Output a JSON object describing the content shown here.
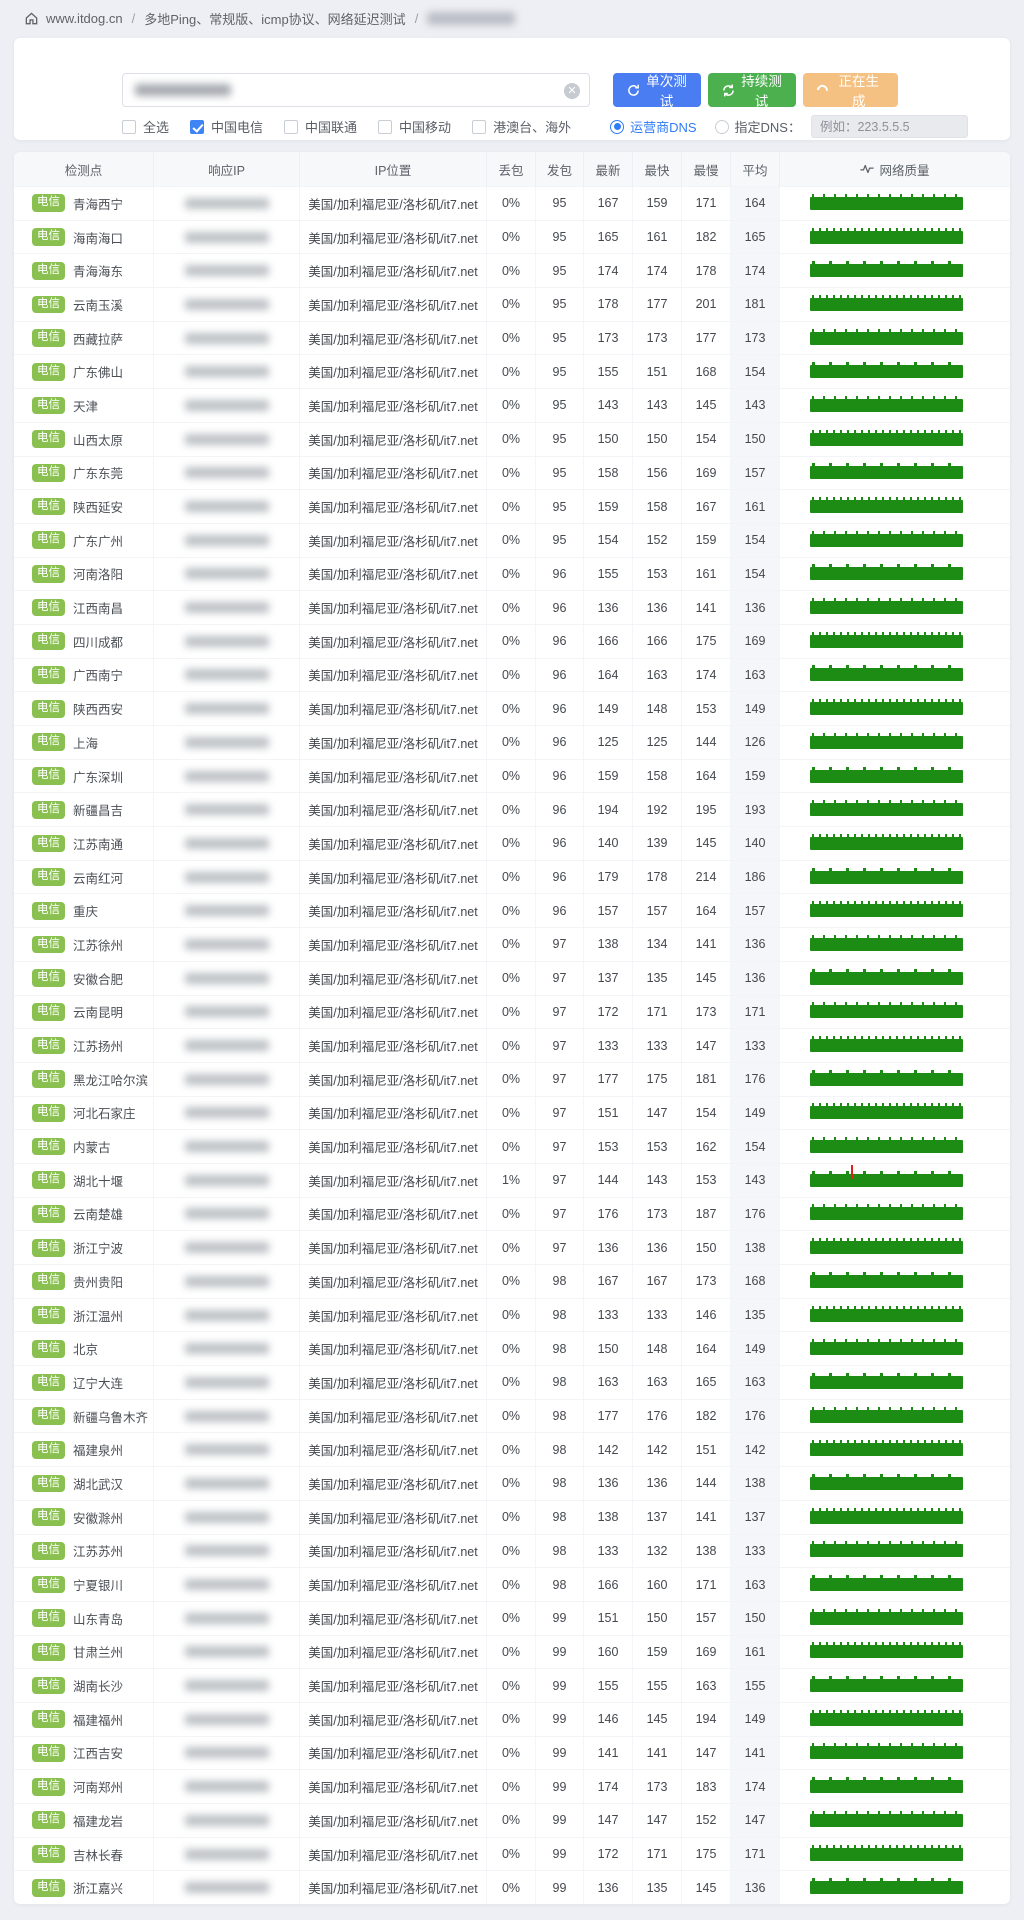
{
  "breadcrumb": {
    "home": "www.itdog.cn",
    "path": "多地Ping、常规版、icmp协议、网络延迟测试",
    "last_segment_redacted": true
  },
  "toolbar": {
    "single_test": "单次测试",
    "continuous_test": "持续测试",
    "generating": "正在生成"
  },
  "filters": {
    "checkboxes": [
      {
        "label": "全选",
        "checked": false
      },
      {
        "label": "中国电信",
        "checked": true
      },
      {
        "label": "中国联通",
        "checked": false
      },
      {
        "label": "中国移动",
        "checked": false
      },
      {
        "label": "港澳台、海外",
        "checked": false
      }
    ],
    "dns": {
      "carrier_label": "运营商DNS",
      "carrier_selected": true,
      "custom_label": "指定DNS：",
      "custom_placeholder": "例如：223.5.5.5"
    }
  },
  "colors": {
    "accent_blue": "#4a7df2",
    "button_green": "#4cb04f",
    "button_orange": "#f5c183",
    "badge_green": "#8ac050",
    "bar_green": "#1c8c14",
    "loss_red": "#e02020"
  },
  "table": {
    "headers": [
      "检测点",
      "响应IP",
      "IP位置",
      "丢包",
      "发包",
      "最新",
      "最快",
      "最慢",
      "平均",
      "网络质量"
    ],
    "badge": "电信",
    "rows": [
      {
        "name": "青海西宁",
        "ip_location": "美国/加利福尼亚/洛杉矶/it7.net",
        "loss": "0%",
        "sent": 95,
        "latest": 167,
        "fastest": 159,
        "slowest": 171,
        "avg": 164
      },
      {
        "name": "海南海口",
        "ip_location": "美国/加利福尼亚/洛杉矶/it7.net",
        "loss": "0%",
        "sent": 95,
        "latest": 165,
        "fastest": 161,
        "slowest": 182,
        "avg": 165
      },
      {
        "name": "青海海东",
        "ip_location": "美国/加利福尼亚/洛杉矶/it7.net",
        "loss": "0%",
        "sent": 95,
        "latest": 174,
        "fastest": 174,
        "slowest": 178,
        "avg": 174
      },
      {
        "name": "云南玉溪",
        "ip_location": "美国/加利福尼亚/洛杉矶/it7.net",
        "loss": "0%",
        "sent": 95,
        "latest": 178,
        "fastest": 177,
        "slowest": 201,
        "avg": 181
      },
      {
        "name": "西藏拉萨",
        "ip_location": "美国/加利福尼亚/洛杉矶/it7.net",
        "loss": "0%",
        "sent": 95,
        "latest": 173,
        "fastest": 173,
        "slowest": 177,
        "avg": 173
      },
      {
        "name": "广东佛山",
        "ip_location": "美国/加利福尼亚/洛杉矶/it7.net",
        "loss": "0%",
        "sent": 95,
        "latest": 155,
        "fastest": 151,
        "slowest": 168,
        "avg": 154
      },
      {
        "name": "天津",
        "ip_location": "美国/加利福尼亚/洛杉矶/it7.net",
        "loss": "0%",
        "sent": 95,
        "latest": 143,
        "fastest": 143,
        "slowest": 145,
        "avg": 143
      },
      {
        "name": "山西太原",
        "ip_location": "美国/加利福尼亚/洛杉矶/it7.net",
        "loss": "0%",
        "sent": 95,
        "latest": 150,
        "fastest": 150,
        "slowest": 154,
        "avg": 150
      },
      {
        "name": "广东东莞",
        "ip_location": "美国/加利福尼亚/洛杉矶/it7.net",
        "loss": "0%",
        "sent": 95,
        "latest": 158,
        "fastest": 156,
        "slowest": 169,
        "avg": 157
      },
      {
        "name": "陕西延安",
        "ip_location": "美国/加利福尼亚/洛杉矶/it7.net",
        "loss": "0%",
        "sent": 95,
        "latest": 159,
        "fastest": 158,
        "slowest": 167,
        "avg": 161
      },
      {
        "name": "广东广州",
        "ip_location": "美国/加利福尼亚/洛杉矶/it7.net",
        "loss": "0%",
        "sent": 95,
        "latest": 154,
        "fastest": 152,
        "slowest": 159,
        "avg": 154
      },
      {
        "name": "河南洛阳",
        "ip_location": "美国/加利福尼亚/洛杉矶/it7.net",
        "loss": "0%",
        "sent": 96,
        "latest": 155,
        "fastest": 153,
        "slowest": 161,
        "avg": 154
      },
      {
        "name": "江西南昌",
        "ip_location": "美国/加利福尼亚/洛杉矶/it7.net",
        "loss": "0%",
        "sent": 96,
        "latest": 136,
        "fastest": 136,
        "slowest": 141,
        "avg": 136
      },
      {
        "name": "四川成都",
        "ip_location": "美国/加利福尼亚/洛杉矶/it7.net",
        "loss": "0%",
        "sent": 96,
        "latest": 166,
        "fastest": 166,
        "slowest": 175,
        "avg": 169
      },
      {
        "name": "广西南宁",
        "ip_location": "美国/加利福尼亚/洛杉矶/it7.net",
        "loss": "0%",
        "sent": 96,
        "latest": 164,
        "fastest": 163,
        "slowest": 174,
        "avg": 163
      },
      {
        "name": "陕西西安",
        "ip_location": "美国/加利福尼亚/洛杉矶/it7.net",
        "loss": "0%",
        "sent": 96,
        "latest": 149,
        "fastest": 148,
        "slowest": 153,
        "avg": 149
      },
      {
        "name": "上海",
        "ip_location": "美国/加利福尼亚/洛杉矶/it7.net",
        "loss": "0%",
        "sent": 96,
        "latest": 125,
        "fastest": 125,
        "slowest": 144,
        "avg": 126
      },
      {
        "name": "广东深圳",
        "ip_location": "美国/加利福尼亚/洛杉矶/it7.net",
        "loss": "0%",
        "sent": 96,
        "latest": 159,
        "fastest": 158,
        "slowest": 164,
        "avg": 159
      },
      {
        "name": "新疆昌吉",
        "ip_location": "美国/加利福尼亚/洛杉矶/it7.net",
        "loss": "0%",
        "sent": 96,
        "latest": 194,
        "fastest": 192,
        "slowest": 195,
        "avg": 193
      },
      {
        "name": "江苏南通",
        "ip_location": "美国/加利福尼亚/洛杉矶/it7.net",
        "loss": "0%",
        "sent": 96,
        "latest": 140,
        "fastest": 139,
        "slowest": 145,
        "avg": 140
      },
      {
        "name": "云南红河",
        "ip_location": "美国/加利福尼亚/洛杉矶/it7.net",
        "loss": "0%",
        "sent": 96,
        "latest": 179,
        "fastest": 178,
        "slowest": 214,
        "avg": 186
      },
      {
        "name": "重庆",
        "ip_location": "美国/加利福尼亚/洛杉矶/it7.net",
        "loss": "0%",
        "sent": 96,
        "latest": 157,
        "fastest": 157,
        "slowest": 164,
        "avg": 157
      },
      {
        "name": "江苏徐州",
        "ip_location": "美国/加利福尼亚/洛杉矶/it7.net",
        "loss": "0%",
        "sent": 97,
        "latest": 138,
        "fastest": 134,
        "slowest": 141,
        "avg": 136
      },
      {
        "name": "安徽合肥",
        "ip_location": "美国/加利福尼亚/洛杉矶/it7.net",
        "loss": "0%",
        "sent": 97,
        "latest": 137,
        "fastest": 135,
        "slowest": 145,
        "avg": 136
      },
      {
        "name": "云南昆明",
        "ip_location": "美国/加利福尼亚/洛杉矶/it7.net",
        "loss": "0%",
        "sent": 97,
        "latest": 172,
        "fastest": 171,
        "slowest": 173,
        "avg": 171
      },
      {
        "name": "江苏扬州",
        "ip_location": "美国/加利福尼亚/洛杉矶/it7.net",
        "loss": "0%",
        "sent": 97,
        "latest": 133,
        "fastest": 133,
        "slowest": 147,
        "avg": 133
      },
      {
        "name": "黑龙江哈尔滨",
        "ip_location": "美国/加利福尼亚/洛杉矶/it7.net",
        "loss": "0%",
        "sent": 97,
        "latest": 177,
        "fastest": 175,
        "slowest": 181,
        "avg": 176
      },
      {
        "name": "河北石家庄",
        "ip_location": "美国/加利福尼亚/洛杉矶/it7.net",
        "loss": "0%",
        "sent": 97,
        "latest": 151,
        "fastest": 147,
        "slowest": 154,
        "avg": 149
      },
      {
        "name": "内蒙古",
        "ip_location": "美国/加利福尼亚/洛杉矶/it7.net",
        "loss": "0%",
        "sent": 97,
        "latest": 153,
        "fastest": 153,
        "slowest": 162,
        "avg": 154
      },
      {
        "name": "湖北十堰",
        "ip_location": "美国/加利福尼亚/洛杉矶/it7.net",
        "loss": "1%",
        "sent": 97,
        "latest": 144,
        "fastest": 143,
        "slowest": 153,
        "avg": 143
      },
      {
        "name": "云南楚雄",
        "ip_location": "美国/加利福尼亚/洛杉矶/it7.net",
        "loss": "0%",
        "sent": 97,
        "latest": 176,
        "fastest": 173,
        "slowest": 187,
        "avg": 176
      },
      {
        "name": "浙江宁波",
        "ip_location": "美国/加利福尼亚/洛杉矶/it7.net",
        "loss": "0%",
        "sent": 97,
        "latest": 136,
        "fastest": 136,
        "slowest": 150,
        "avg": 138
      },
      {
        "name": "贵州贵阳",
        "ip_location": "美国/加利福尼亚/洛杉矶/it7.net",
        "loss": "0%",
        "sent": 98,
        "latest": 167,
        "fastest": 167,
        "slowest": 173,
        "avg": 168
      },
      {
        "name": "浙江温州",
        "ip_location": "美国/加利福尼亚/洛杉矶/it7.net",
        "loss": "0%",
        "sent": 98,
        "latest": 133,
        "fastest": 133,
        "slowest": 146,
        "avg": 135
      },
      {
        "name": "北京",
        "ip_location": "美国/加利福尼亚/洛杉矶/it7.net",
        "loss": "0%",
        "sent": 98,
        "latest": 150,
        "fastest": 148,
        "slowest": 164,
        "avg": 149
      },
      {
        "name": "辽宁大连",
        "ip_location": "美国/加利福尼亚/洛杉矶/it7.net",
        "loss": "0%",
        "sent": 98,
        "latest": 163,
        "fastest": 163,
        "slowest": 165,
        "avg": 163
      },
      {
        "name": "新疆乌鲁木齐",
        "ip_location": "美国/加利福尼亚/洛杉矶/it7.net",
        "loss": "0%",
        "sent": 98,
        "latest": 177,
        "fastest": 176,
        "slowest": 182,
        "avg": 176
      },
      {
        "name": "福建泉州",
        "ip_location": "美国/加利福尼亚/洛杉矶/it7.net",
        "loss": "0%",
        "sent": 98,
        "latest": 142,
        "fastest": 142,
        "slowest": 151,
        "avg": 142
      },
      {
        "name": "湖北武汉",
        "ip_location": "美国/加利福尼亚/洛杉矶/it7.net",
        "loss": "0%",
        "sent": 98,
        "latest": 136,
        "fastest": 136,
        "slowest": 144,
        "avg": 138
      },
      {
        "name": "安徽滁州",
        "ip_location": "美国/加利福尼亚/洛杉矶/it7.net",
        "loss": "0%",
        "sent": 98,
        "latest": 138,
        "fastest": 137,
        "slowest": 141,
        "avg": 137
      },
      {
        "name": "江苏苏州",
        "ip_location": "美国/加利福尼亚/洛杉矶/it7.net",
        "loss": "0%",
        "sent": 98,
        "latest": 133,
        "fastest": 132,
        "slowest": 138,
        "avg": 133
      },
      {
        "name": "宁夏银川",
        "ip_location": "美国/加利福尼亚/洛杉矶/it7.net",
        "loss": "0%",
        "sent": 98,
        "latest": 166,
        "fastest": 160,
        "slowest": 171,
        "avg": 163
      },
      {
        "name": "山东青岛",
        "ip_location": "美国/加利福尼亚/洛杉矶/it7.net",
        "loss": "0%",
        "sent": 99,
        "latest": 151,
        "fastest": 150,
        "slowest": 157,
        "avg": 150
      },
      {
        "name": "甘肃兰州",
        "ip_location": "美国/加利福尼亚/洛杉矶/it7.net",
        "loss": "0%",
        "sent": 99,
        "latest": 160,
        "fastest": 159,
        "slowest": 169,
        "avg": 161
      },
      {
        "name": "湖南长沙",
        "ip_location": "美国/加利福尼亚/洛杉矶/it7.net",
        "loss": "0%",
        "sent": 99,
        "latest": 155,
        "fastest": 155,
        "slowest": 163,
        "avg": 155
      },
      {
        "name": "福建福州",
        "ip_location": "美国/加利福尼亚/洛杉矶/it7.net",
        "loss": "0%",
        "sent": 99,
        "latest": 146,
        "fastest": 145,
        "slowest": 194,
        "avg": 149
      },
      {
        "name": "江西吉安",
        "ip_location": "美国/加利福尼亚/洛杉矶/it7.net",
        "loss": "0%",
        "sent": 99,
        "latest": 141,
        "fastest": 141,
        "slowest": 147,
        "avg": 141
      },
      {
        "name": "河南郑州",
        "ip_location": "美国/加利福尼亚/洛杉矶/it7.net",
        "loss": "0%",
        "sent": 99,
        "latest": 174,
        "fastest": 173,
        "slowest": 183,
        "avg": 174
      },
      {
        "name": "福建龙岩",
        "ip_location": "美国/加利福尼亚/洛杉矶/it7.net",
        "loss": "0%",
        "sent": 99,
        "latest": 147,
        "fastest": 147,
        "slowest": 152,
        "avg": 147
      },
      {
        "name": "吉林长春",
        "ip_location": "美国/加利福尼亚/洛杉矶/it7.net",
        "loss": "0%",
        "sent": 99,
        "latest": 172,
        "fastest": 171,
        "slowest": 175,
        "avg": 171
      },
      {
        "name": "浙江嘉兴",
        "ip_location": "美国/加利福尼亚/洛杉矶/it7.net",
        "loss": "0%",
        "sent": 99,
        "latest": 136,
        "fastest": 135,
        "slowest": 145,
        "avg": 136
      }
    ]
  }
}
